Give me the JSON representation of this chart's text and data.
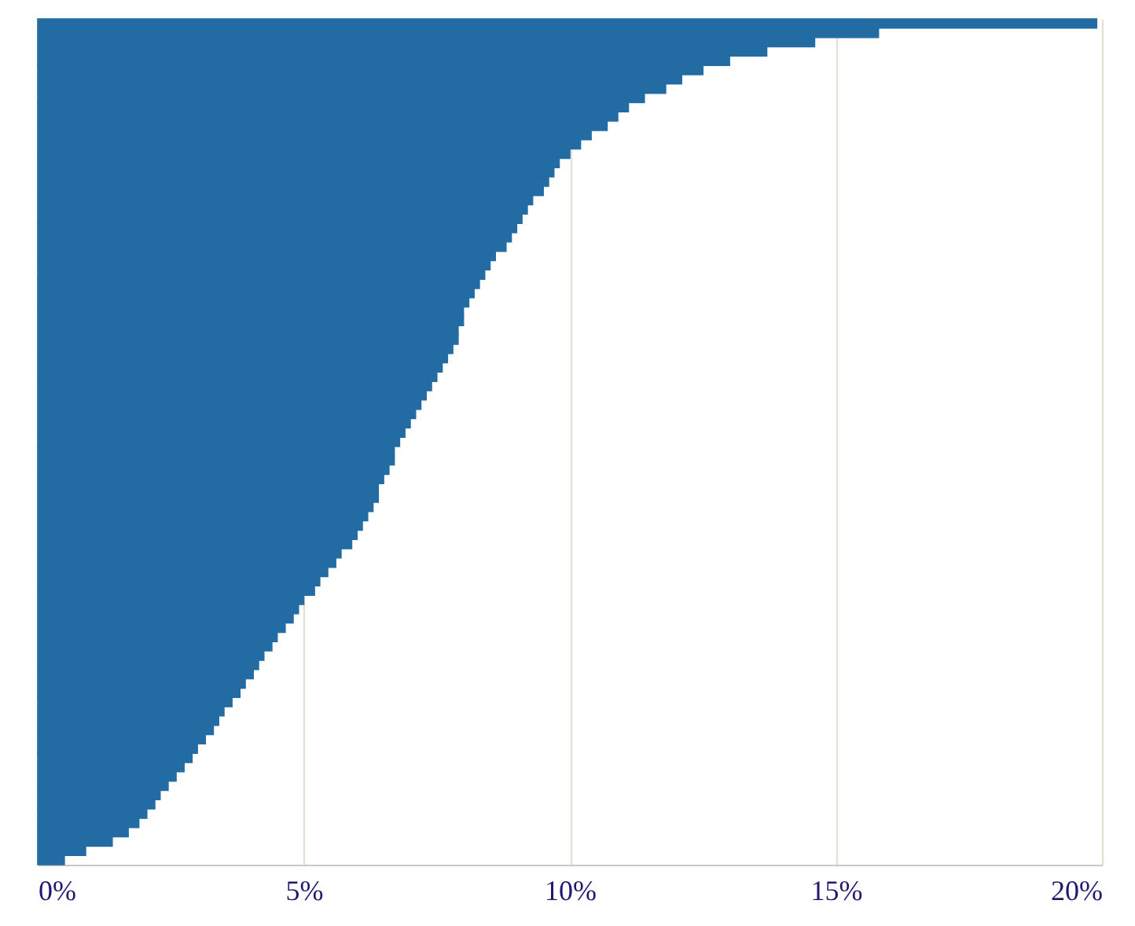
{
  "chart_data": {
    "type": "bar",
    "orientation": "horizontal",
    "color": "#236ba3",
    "categories": [
      null,
      null,
      null,
      null,
      null,
      null,
      null,
      null,
      null,
      null,
      null,
      null,
      null,
      null,
      null,
      null,
      null,
      null,
      null,
      null,
      null,
      null,
      null,
      null,
      null,
      null,
      null,
      null,
      null,
      null,
      null,
      null,
      null,
      null,
      null,
      null,
      null,
      null,
      null,
      null,
      null,
      null,
      null,
      null,
      null,
      null,
      null,
      null,
      null,
      null,
      null,
      null,
      null,
      null,
      null,
      null,
      null,
      null,
      null,
      null,
      null,
      null,
      null,
      null,
      null,
      null,
      null,
      null,
      null,
      null,
      null,
      null,
      null,
      null,
      null,
      null,
      null,
      null,
      null,
      null,
      null,
      null,
      null,
      null,
      null,
      null,
      null,
      null,
      null,
      null,
      null
    ],
    "values": [
      19.9,
      15.8,
      14.6,
      13.7,
      13.0,
      12.5,
      12.1,
      11.8,
      11.4,
      11.1,
      10.9,
      10.7,
      10.4,
      10.2,
      10.0,
      9.8,
      9.7,
      9.6,
      9.5,
      9.3,
      9.2,
      9.1,
      9.0,
      8.9,
      8.8,
      8.6,
      8.5,
      8.4,
      8.3,
      8.2,
      8.1,
      8.0,
      8.0,
      7.9,
      7.9,
      7.8,
      7.7,
      7.6,
      7.5,
      7.4,
      7.3,
      7.2,
      7.1,
      7.0,
      6.9,
      6.8,
      6.7,
      6.7,
      6.6,
      6.5,
      6.4,
      6.4,
      6.3,
      6.2,
      6.1,
      6.0,
      5.9,
      5.7,
      5.6,
      5.45,
      5.3,
      5.2,
      5.0,
      4.9,
      4.8,
      4.65,
      4.5,
      4.4,
      4.25,
      4.15,
      4.05,
      3.9,
      3.8,
      3.65,
      3.5,
      3.4,
      3.3,
      3.15,
      3.0,
      2.9,
      2.75,
      2.6,
      2.45,
      2.3,
      2.2,
      2.05,
      1.9,
      1.7,
      1.4,
      0.9,
      0.5
    ],
    "xlim": [
      0,
      20
    ],
    "xticks": [
      {
        "value": 0,
        "label": "0%"
      },
      {
        "value": 5,
        "label": "5%"
      },
      {
        "value": 10,
        "label": "10%"
      },
      {
        "value": 15,
        "label": "15%"
      },
      {
        "value": 20,
        "label": "20%"
      }
    ],
    "grid": "x",
    "tick_labels": "x"
  }
}
